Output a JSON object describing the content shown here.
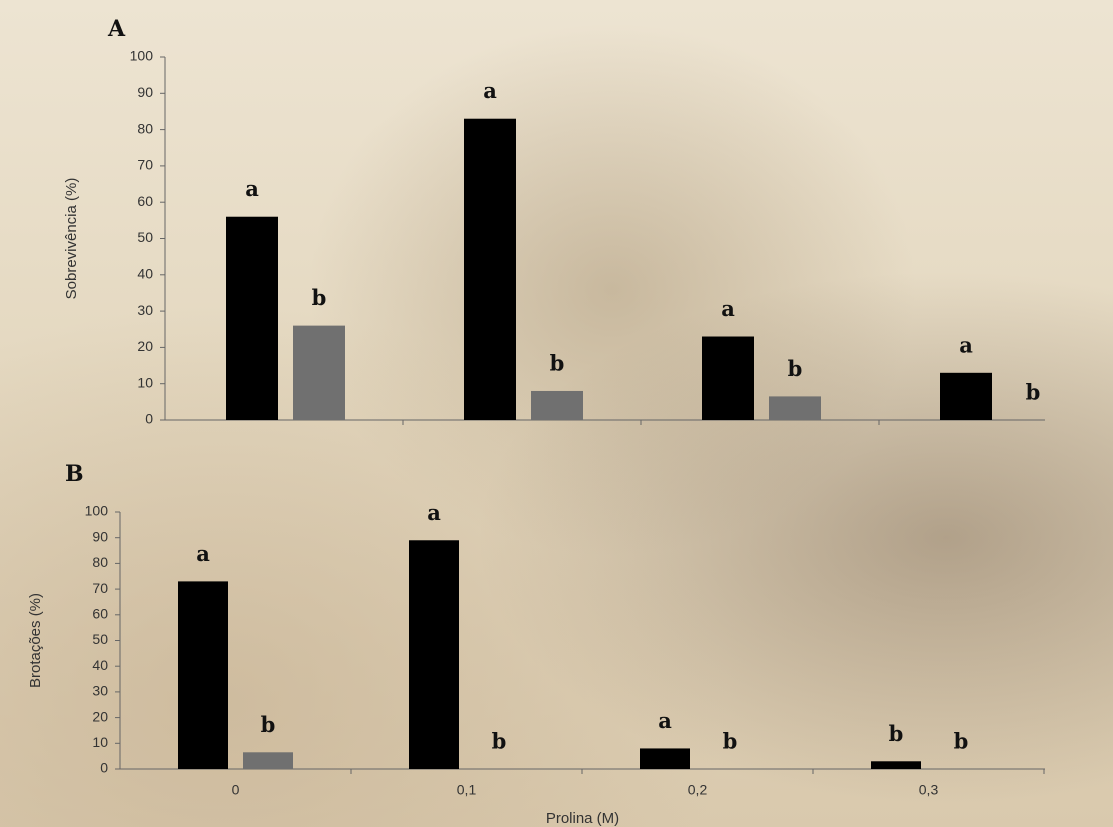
{
  "chart_data": [
    {
      "type": "bar",
      "title": "A",
      "y_label": "Sobrevivência (%)",
      "categories": [
        null,
        null,
        null,
        null
      ],
      "series": [
        {
          "color": "#000000",
          "values": [
            56,
            83,
            23,
            13
          ],
          "letters": [
            "a",
            "a",
            "a",
            "a"
          ]
        },
        {
          "color": "#707070",
          "values": [
            26,
            8,
            6.5,
            0
          ],
          "letters": [
            "b",
            "b",
            "b",
            "b"
          ]
        }
      ],
      "ylim": [
        0,
        100
      ],
      "yticks": [
        0,
        10,
        20,
        30,
        40,
        50,
        60,
        70,
        80,
        90,
        100
      ]
    },
    {
      "type": "bar",
      "title": "B",
      "y_label": "Brotações (%)",
      "x_label": "Prolina (M)",
      "categories": [
        "0",
        "0,1",
        "0,2",
        "0,3"
      ],
      "series": [
        {
          "color": "#000000",
          "values": [
            73,
            89,
            8,
            3
          ],
          "letters": [
            "a",
            "a",
            "a",
            "b"
          ]
        },
        {
          "color": "#707070",
          "values": [
            6.5,
            0,
            0,
            0
          ],
          "letters": [
            "b",
            "b",
            "b",
            "b"
          ]
        }
      ],
      "ylim": [
        0,
        100
      ],
      "yticks": [
        0,
        10,
        20,
        30,
        40,
        50,
        60,
        70,
        80,
        90,
        100
      ]
    }
  ]
}
